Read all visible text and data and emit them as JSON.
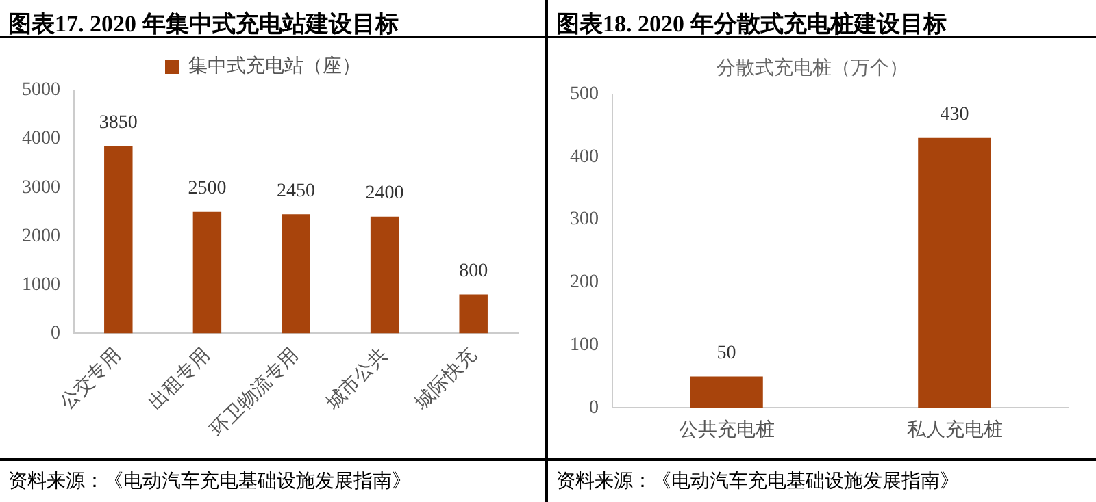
{
  "chart_data": [
    {
      "type": "bar",
      "title": "图表17. 2020 年集中式充电站建设目标",
      "categories": [
        "公交专用",
        "出租专用",
        "环卫物流专用",
        "城市公共",
        "城际快充"
      ],
      "series": [
        {
          "name": "集中式充电站（座）",
          "color": "#a8440c",
          "values": [
            3850,
            2500,
            2450,
            2400,
            800
          ]
        }
      ],
      "ylim": [
        0,
        5000
      ],
      "yticks": [
        0,
        1000,
        2000,
        3000,
        4000,
        5000
      ],
      "grid": false,
      "legend": "top",
      "data_labels": true,
      "annotations": [
        "资料来源：《电动汽车充电基础设施发展指南》"
      ]
    },
    {
      "type": "bar",
      "title": "图表18. 2020 年分散式充电桩建设目标",
      "subtitle": "分散式充电桩（万个）",
      "categories": [
        "公共充电桩",
        "私人充电桩"
      ],
      "series": [
        {
          "color": "#a8440c",
          "values": [
            50,
            430
          ]
        }
      ],
      "ylim": [
        0,
        500
      ],
      "yticks": [
        0,
        100,
        200,
        300,
        400,
        500
      ],
      "grid": false,
      "data_labels": true,
      "annotations": [
        "资料来源：《电动汽车充电基础设施发展指南》"
      ]
    }
  ]
}
